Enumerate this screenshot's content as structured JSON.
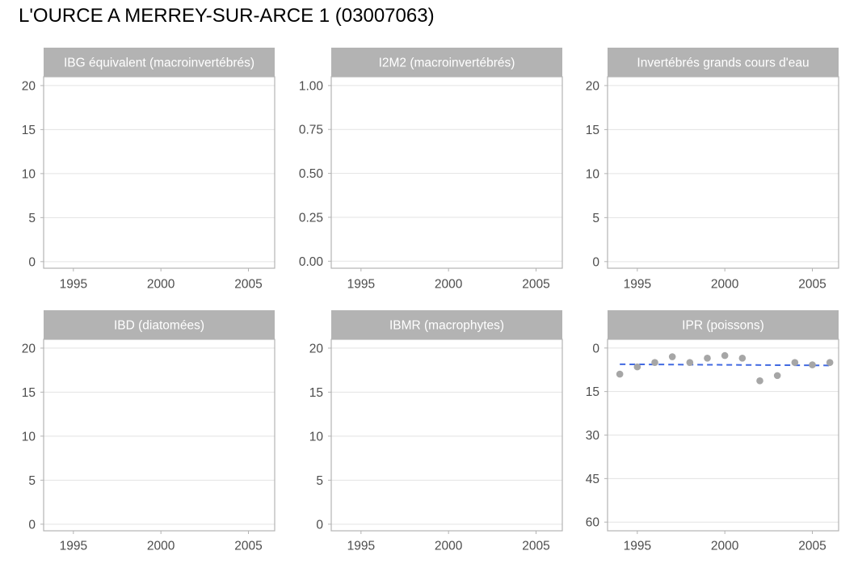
{
  "title": "L'OURCE A MERREY-SUR-ARCE 1 (03007063)",
  "colors": {
    "strip_background": "#b3b3b3",
    "strip_text": "#ffffff",
    "panel_border": "#b3b3b3",
    "gridline": "#e3e3e3",
    "tick_label": "#4d4d4d",
    "point": "#a6a6a6",
    "trend_line": "#4169e1"
  },
  "chart_data": [
    {
      "type": "scatter",
      "title": "IBG équivalent (macroinvertébrés)",
      "xlim": [
        1993.3,
        2006.5
      ],
      "ylim": [
        -0.75,
        21
      ],
      "y_reversed": false,
      "x_ticks": [
        "1995",
        "2000",
        "2005"
      ],
      "y_ticks": [
        "0",
        "5",
        "10",
        "15",
        "20"
      ],
      "grid": "horizontal",
      "points": [],
      "trend": null
    },
    {
      "type": "scatter",
      "title": "I2M2 (macroinvertébrés)",
      "xlim": [
        1993.3,
        2006.5
      ],
      "ylim": [
        -0.04,
        1.05
      ],
      "y_reversed": false,
      "x_ticks": [
        "1995",
        "2000",
        "2005"
      ],
      "y_ticks": [
        "0.00",
        "0.25",
        "0.50",
        "0.75",
        "1.00"
      ],
      "grid": "horizontal",
      "points": [],
      "trend": null
    },
    {
      "type": "scatter",
      "title": "Invertébrés grands cours d'eau",
      "xlim": [
        1993.3,
        2006.5
      ],
      "ylim": [
        -0.75,
        21
      ],
      "y_reversed": false,
      "x_ticks": [
        "1995",
        "2000",
        "2005"
      ],
      "y_ticks": [
        "0",
        "5",
        "10",
        "15",
        "20"
      ],
      "grid": "horizontal",
      "points": [],
      "trend": null
    },
    {
      "type": "scatter",
      "title": "IBD (diatomées)",
      "xlim": [
        1993.3,
        2006.5
      ],
      "ylim": [
        -0.75,
        21
      ],
      "y_reversed": false,
      "x_ticks": [
        "1995",
        "2000",
        "2005"
      ],
      "y_ticks": [
        "0",
        "5",
        "10",
        "15",
        "20"
      ],
      "grid": "horizontal",
      "points": [],
      "trend": null
    },
    {
      "type": "scatter",
      "title": "IBMR (macrophytes)",
      "xlim": [
        1993.3,
        2006.5
      ],
      "ylim": [
        -0.75,
        21
      ],
      "y_reversed": false,
      "x_ticks": [
        "1995",
        "2000",
        "2005"
      ],
      "y_ticks": [
        "0",
        "5",
        "10",
        "15",
        "20"
      ],
      "grid": "horizontal",
      "points": [],
      "trend": null
    },
    {
      "type": "scatter",
      "title": "IPR (poissons)",
      "xlim": [
        1993.3,
        2006.5
      ],
      "ylim": [
        -3,
        63
      ],
      "y_reversed": true,
      "x_ticks": [
        "1995",
        "2000",
        "2005"
      ],
      "y_ticks": [
        "0",
        "15",
        "30",
        "45",
        "60"
      ],
      "grid": "horizontal",
      "points": [
        {
          "x": 1994,
          "y": 9.0
        },
        {
          "x": 1995,
          "y": 6.5
        },
        {
          "x": 1996,
          "y": 5.0
        },
        {
          "x": 1997,
          "y": 3.0
        },
        {
          "x": 1998,
          "y": 5.0
        },
        {
          "x": 1999,
          "y": 3.5
        },
        {
          "x": 2000,
          "y": 2.6
        },
        {
          "x": 2001,
          "y": 3.5
        },
        {
          "x": 2002,
          "y": 11.3
        },
        {
          "x": 2003,
          "y": 9.5
        },
        {
          "x": 2004,
          "y": 5.0
        },
        {
          "x": 2005,
          "y": 5.8
        },
        {
          "x": 2006,
          "y": 5.0
        }
      ],
      "trend": {
        "x": [
          1994,
          2006
        ],
        "y": [
          5.6,
          6.0
        ]
      }
    }
  ]
}
